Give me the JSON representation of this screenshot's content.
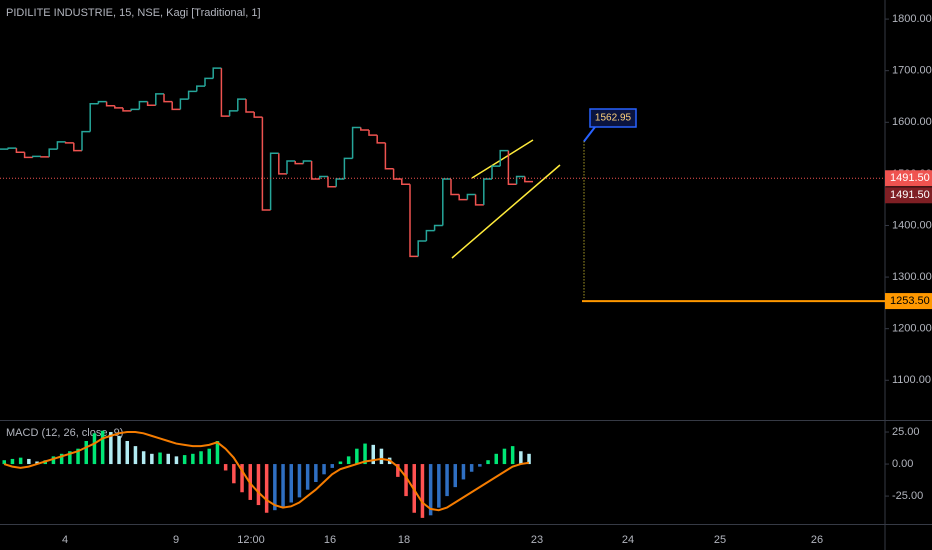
{
  "chart_data": [
    {
      "type": "kagi",
      "title": "PIDILITE INDUSTRIE, 15, NSE, Kagi [Traditional, 1]",
      "values": [
        1548,
        1550,
        1542,
        1532,
        1534,
        1533,
        1548,
        1562,
        1560,
        1545,
        1582,
        1636,
        1640,
        1632,
        1628,
        1622,
        1625,
        1640,
        1633,
        1655,
        1640,
        1625,
        1645,
        1660,
        1670,
        1685,
        1705,
        1612,
        1622,
        1645,
        1620,
        1610,
        1430,
        1540,
        1500,
        1525,
        1520,
        1525,
        1490,
        1495,
        1475,
        1490,
        1530,
        1590,
        1585,
        1575,
        1560,
        1510,
        1490,
        1480,
        1340,
        1370,
        1390,
        1400,
        1490,
        1460,
        1450,
        1460,
        1440,
        1490,
        1515,
        1545,
        1480,
        1495,
        1485
      ],
      "colors": {
        "up": "#26a69a",
        "down": "#ef5350"
      },
      "ylim": [
        1023,
        1837
      ],
      "yticks": [
        {
          "value": 1100,
          "label": "1100.00"
        },
        {
          "value": 1200,
          "label": "1200.00"
        },
        {
          "value": 1300,
          "label": "1300.00"
        },
        {
          "value": 1400,
          "label": "1400.00"
        },
        {
          "value": 1500,
          "label": "1500.00"
        },
        {
          "value": 1600,
          "label": "1600.00"
        },
        {
          "value": 1700,
          "label": "1700.00"
        },
        {
          "value": 1800,
          "label": "1800.00"
        }
      ],
      "last_price": {
        "value": 1491.5,
        "label": "1491.50"
      },
      "target": {
        "value": 1253.5,
        "label": "1253.50"
      },
      "projection": {
        "value": 1562.95,
        "label": "1562.95"
      },
      "x_labels": [
        "4",
        "9",
        "12:00",
        "16",
        "18",
        "23",
        "24",
        "25",
        "26"
      ]
    },
    {
      "type": "macd",
      "title": "MACD (12, 26, close, 9)",
      "histogram": [
        3,
        4,
        5,
        4,
        2,
        3,
        6,
        8,
        10,
        12,
        18,
        24,
        26,
        25,
        22,
        18,
        14,
        10,
        8,
        9,
        8,
        6,
        7,
        8,
        10,
        12,
        18,
        -5,
        -15,
        -22,
        -28,
        -32,
        -38,
        -36,
        -34,
        -30,
        -26,
        -20,
        -14,
        -8,
        -3,
        2,
        6,
        12,
        16,
        15,
        12,
        5,
        -10,
        -25,
        -38,
        -42,
        -40,
        -34,
        -25,
        -18,
        -12,
        -6,
        -2,
        3,
        8,
        12,
        14,
        10,
        8
      ],
      "histogram_colors": {
        "pos_up": "#00e676",
        "pos_down": "#b2ebf2",
        "neg_down": "#ff5252",
        "neg_up": "#2f6fc2"
      },
      "macd_line": [
        0,
        -2,
        -3,
        -2,
        0,
        2,
        4,
        6,
        8,
        10,
        13,
        16,
        20,
        22,
        24,
        25,
        25,
        24,
        22,
        20,
        18,
        16,
        15,
        14,
        14,
        15,
        17,
        12,
        5,
        -5,
        -15,
        -22,
        -28,
        -32,
        -34,
        -33,
        -30,
        -25,
        -20,
        -14,
        -8,
        -4,
        -2,
        0,
        2,
        3,
        4,
        3,
        -2,
        -10,
        -20,
        -30,
        -35,
        -36,
        -34,
        -30,
        -26,
        -22,
        -18,
        -14,
        -10,
        -6,
        -2,
        0,
        1
      ],
      "line_color": "#f57c00",
      "ylim": [
        -46,
        34
      ],
      "yticks": [
        {
          "value": -25,
          "label": "-25.00"
        },
        {
          "value": 0,
          "label": "0.00"
        },
        {
          "value": 25,
          "label": "25.00"
        }
      ]
    }
  ]
}
